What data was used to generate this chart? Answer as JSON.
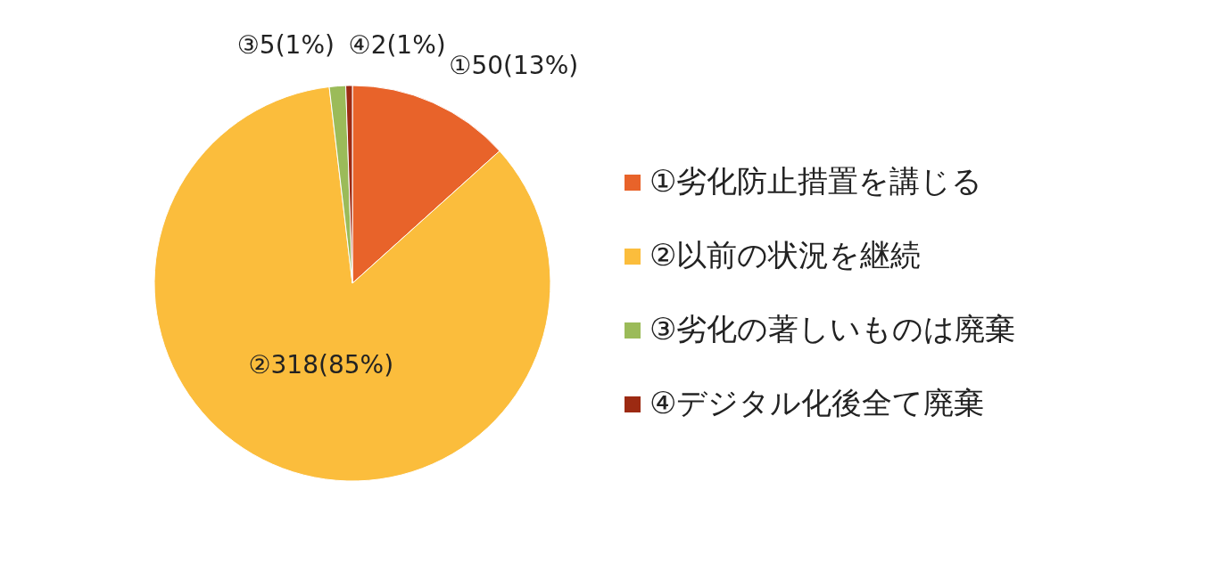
{
  "chart_data": {
    "type": "pie",
    "categories": [
      "①劣化防止措置を講じる",
      "②以前の状況を継続",
      "③劣化の著しいものは廃棄",
      "④デジタル化後全て廃棄"
    ],
    "values": [
      50,
      318,
      5,
      2
    ],
    "colors": [
      "#e8632a",
      "#fbbd3c",
      "#9bbb59",
      "#9c2a12"
    ],
    "value_labels": [
      "①50(13%)",
      "②318(85%)",
      "③5(1%)",
      "④2(1%)"
    ],
    "legend": "right"
  }
}
